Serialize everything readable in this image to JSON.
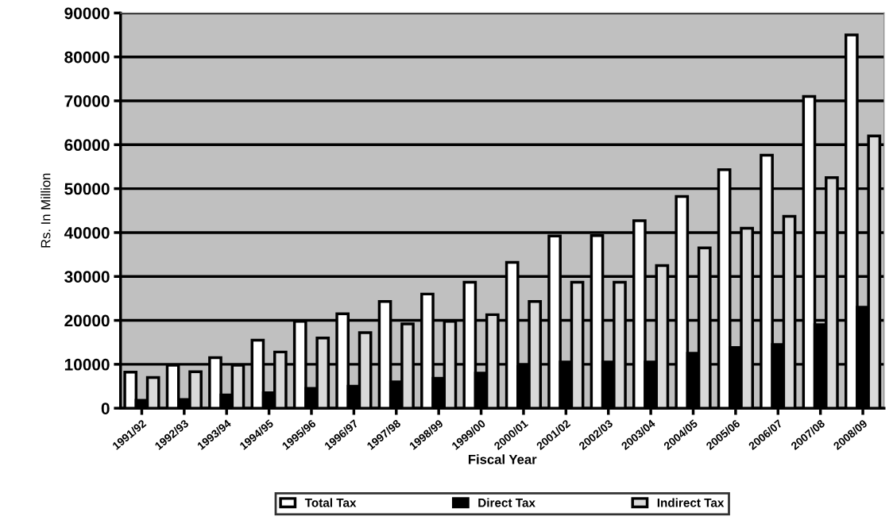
{
  "chart_data": {
    "type": "bar",
    "xlabel": "Fiscal Year",
    "ylabel": "Rs. In Million",
    "categories": [
      "1991/92",
      "1992/93",
      "1993/94",
      "1994/95",
      "1995/96",
      "1996/97",
      "1997/98",
      "1998/99",
      "1999/00",
      "2000/01",
      "2001/02",
      "2002/03",
      "2003/04",
      "2004/05",
      "2005/06",
      "2006/07",
      "2007/08",
      "2008/09"
    ],
    "series": [
      {
        "name": "Total Tax",
        "color": "#ffffff",
        "values": [
          8200,
          9800,
          11500,
          15500,
          19800,
          21500,
          24300,
          26000,
          28700,
          33200,
          39200,
          39300,
          42700,
          48200,
          54300,
          57600,
          71000,
          85000
        ]
      },
      {
        "name": "Direct Tax",
        "color": "#000000",
        "values": [
          1800,
          2000,
          3000,
          3500,
          4500,
          5000,
          6000,
          6800,
          8000,
          9500,
          10500,
          10500,
          10500,
          12500,
          13800,
          14500,
          19000,
          23000
        ]
      },
      {
        "name": "Indirect Tax",
        "color": "#d9d9d9",
        "values": [
          7000,
          8300,
          9800,
          12800,
          16000,
          17200,
          19200,
          19800,
          21300,
          24300,
          28700,
          28700,
          32500,
          36500,
          41000,
          43700,
          52500,
          62000
        ]
      }
    ],
    "ylim": [
      0,
      90000
    ],
    "yticks": [
      0,
      10000,
      20000,
      30000,
      40000,
      50000,
      60000,
      70000,
      80000,
      90000
    ],
    "grid": "y",
    "legend": "bottom"
  }
}
